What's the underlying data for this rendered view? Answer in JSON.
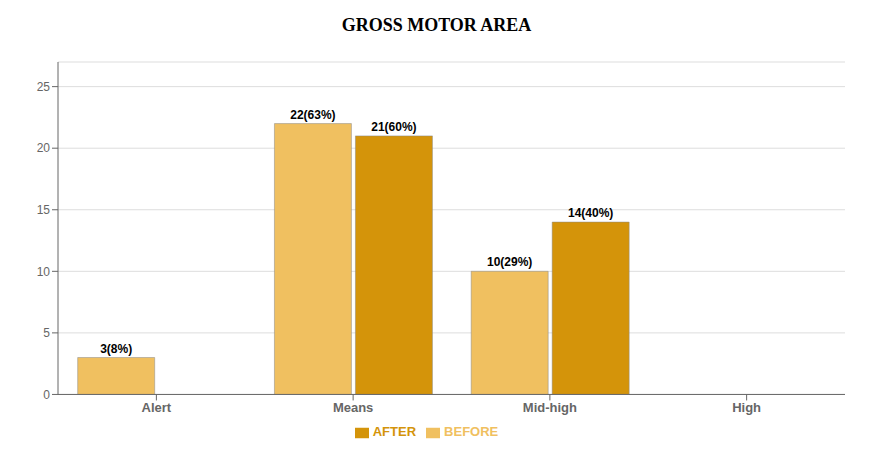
{
  "chart_data": {
    "type": "bar",
    "title": "GROSS MOTOR AREA",
    "categories": [
      "Alert",
      "Means",
      "Mid-high",
      "High"
    ],
    "series": [
      {
        "name": "BEFORE",
        "color": "#F0C060",
        "values": [
          3,
          22,
          10,
          0
        ],
        "value_labels": [
          "3(8%)",
          "22(63%)",
          "10(29%)",
          "0"
        ]
      },
      {
        "name": "AFTER",
        "color": "#D4940A",
        "values": [
          0,
          21,
          14,
          0
        ],
        "value_labels": [
          "0",
          "21(60%)",
          "14(40%)",
          "0"
        ]
      }
    ],
    "ylim": [
      0,
      27
    ],
    "yticks": [
      0,
      5,
      10,
      15,
      20,
      25
    ],
    "grid": true,
    "legend": "bottom",
    "data_labels": true
  }
}
